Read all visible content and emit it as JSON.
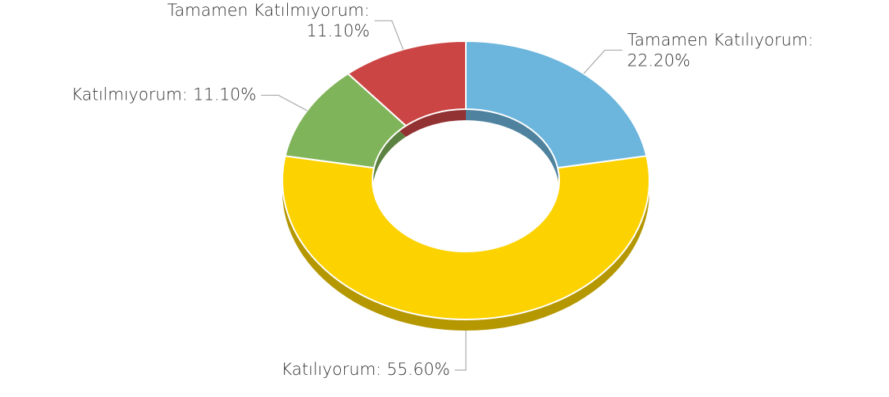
{
  "chart_data": {
    "type": "donut3d",
    "categories": [
      "Tamamen Katılıyorum:",
      "Katılıyorum:",
      "Katılmıyorum:",
      "Tamamen Katılmıyorum:"
    ],
    "values": [
      22.2,
      55.6,
      11.1,
      11.1
    ],
    "value_labels": [
      "22.20%",
      "55.60%",
      "11.10%",
      "11.10%"
    ],
    "colors": [
      "#6cb5dc",
      "#fcd200",
      "#80b45a",
      "#cc4545"
    ]
  }
}
